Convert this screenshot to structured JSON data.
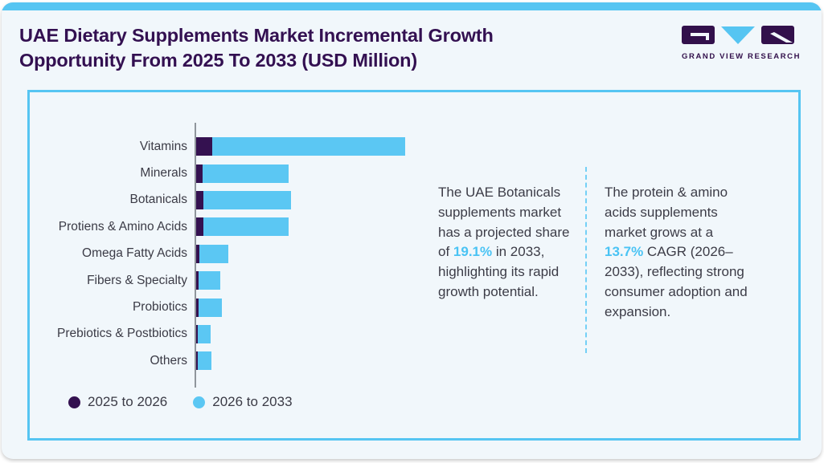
{
  "header": {
    "title": "UAE Dietary Supplements Market Incremental Growth Opportunity From 2025 To 2033 (USD Million)",
    "logo_brand": "GRAND VIEW RESEARCH"
  },
  "annotations": {
    "left": {
      "pre": "The UAE Botanicals supplements market has a projected share of ",
      "highlight": "19.1%",
      "post": " in 2033, highlighting its rapid growth potential."
    },
    "right": {
      "pre": "The protein & amino acids supplements market grows at a ",
      "highlight": "13.7%",
      "post": " CAGR (2026–2033), reflecting strong consumer adoption and expansion."
    }
  },
  "chart_data": {
    "type": "bar",
    "orientation": "horizontal",
    "stacked": true,
    "title": "UAE Dietary Supplements Market Incremental Growth Opportunity From 2025 To 2033 (USD Million)",
    "categories": [
      "Vitamins",
      "Minerals",
      "Botanicals",
      "Protiens & Amino Acids",
      "Omega Fatty Acids",
      "Fibers & Specialty",
      "Probiotics",
      "Prebiotics & Postbiotics",
      "Others"
    ],
    "series": [
      {
        "name": "2025 to 2026",
        "color": "#341150",
        "values": [
          20,
          8,
          9,
          9,
          4,
          3,
          3,
          2,
          1.5
        ]
      },
      {
        "name": "2026 to 2033",
        "color": "#5bc7f3",
        "values": [
          240,
          107,
          109,
          106,
          36,
          27,
          29,
          16,
          17
        ]
      }
    ],
    "xlabel": "",
    "ylabel": "",
    "value_axis_shown": false,
    "values_note": "relative bar lengths; source image shows no numeric axis",
    "legend_position": "bottom-left",
    "grid": false
  },
  "colors": {
    "accent_blue": "#5bc7f3",
    "dark_purple": "#341150",
    "title_purple": "#331051",
    "panel_border": "#56c5f2",
    "text": "#3c3c47",
    "axis": "#8f969c"
  }
}
